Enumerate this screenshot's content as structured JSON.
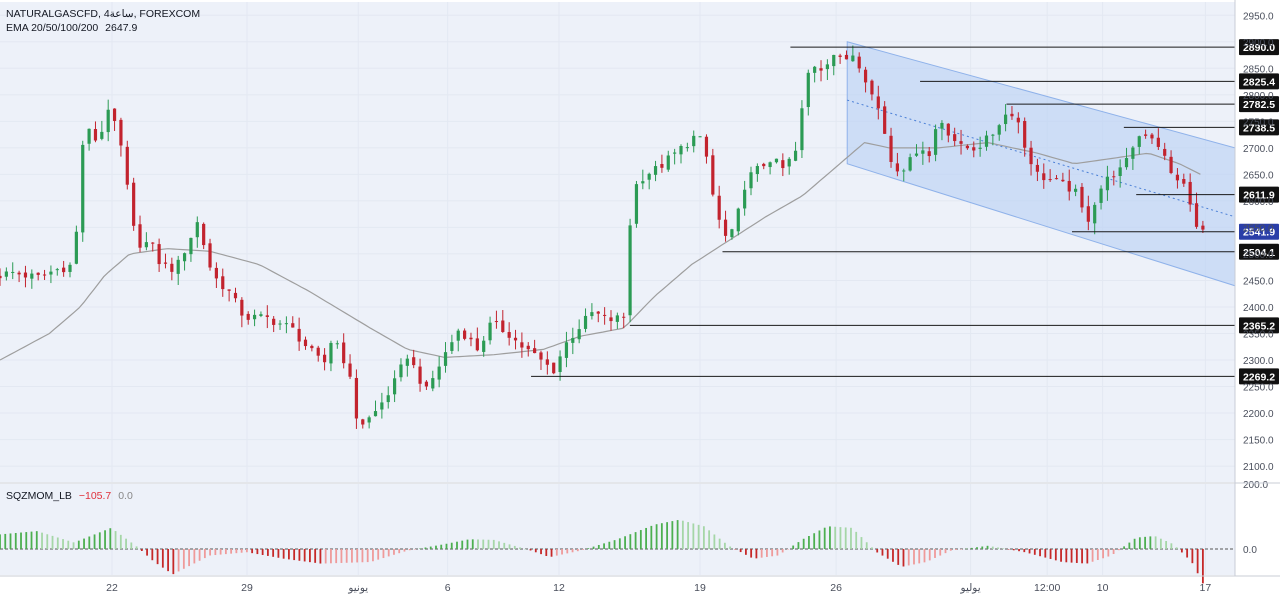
{
  "header": {
    "symbol": "NATURALGASCFD, 4ساعة, FOREXCOM",
    "ema_label": "EMA 20/50/100/200",
    "ema_value": "2647.9"
  },
  "indicator": {
    "name": "SQZMOM_LB",
    "value": "−105.7",
    "value2": "0.0"
  },
  "colors": {
    "up": "#26a69a",
    "up_candle": "#2b9b54",
    "down": "#c2232e",
    "ema": "#9e9e9e",
    "channel_fill": "#bcd3f5",
    "bg": "#edf1f9",
    "hist_up_strong": "#4caf50",
    "hist_up_weak": "#a5d6a7",
    "hist_down_strong": "#c62828",
    "hist_down_weak": "#ef9a9a"
  },
  "chart_data": {
    "type": "candlestick",
    "y_range": [
      2070,
      2975
    ],
    "y_ticks": [
      2100,
      2150,
      2200,
      2250,
      2300,
      2350,
      2400,
      2450,
      2500,
      2550,
      2600,
      2650,
      2700,
      2750,
      2800,
      2850,
      2900,
      2950
    ],
    "y_tick_labels": [
      "2100.0",
      "2150.0",
      "2200.0",
      "2250.0",
      "2300.0",
      "2350.0",
      "2400.0",
      "2450.0",
      "2500.0",
      "2550.0",
      "2600.0",
      "2650.0",
      "2700.0",
      "2750.0",
      "2800.0",
      "2850.0",
      "2900.0",
      "2950.0"
    ],
    "x_labels": [
      "22",
      "29",
      "يونيو",
      "6",
      "12",
      "19",
      "26",
      "يوليو",
      "12:00",
      "10",
      "17"
    ],
    "x_label_positions": [
      0.0907,
      0.2,
      0.2901,
      0.3625,
      0.4526,
      0.5668,
      0.677,
      0.7859,
      0.8479,
      0.8928,
      0.976
    ],
    "price_levels": [
      {
        "value": 2890.0,
        "label": "2890.0",
        "from": 0.64
      },
      {
        "value": 2825.4,
        "label": "2825.4",
        "from": 0.745
      },
      {
        "value": 2782.5,
        "label": "2782.5",
        "from": 0.815
      },
      {
        "value": 2738.5,
        "label": "2738.5",
        "from": 0.91
      },
      {
        "value": 2611.9,
        "label": "2611.9",
        "from": 0.92
      },
      {
        "value": 2541.9,
        "label": "2541.9",
        "from": 0.868,
        "current": true
      },
      {
        "value": 2504.1,
        "label": "2504.1",
        "from": 0.585
      },
      {
        "value": 2365.2,
        "label": "2365.2",
        "from": 0.51
      },
      {
        "value": 2269.2,
        "label": "2269.2",
        "from": 0.43
      }
    ],
    "channel": {
      "upper": {
        "from": [
          0.686,
          2900
        ],
        "to": [
          1.0,
          2700
        ]
      },
      "lower": {
        "from": [
          0.686,
          2670
        ],
        "to": [
          1.0,
          2440
        ]
      },
      "mid": {
        "from": [
          0.686,
          2790
        ],
        "to": [
          1.0,
          2570
        ]
      }
    },
    "price_keypoints": [
      [
        0.0,
        2460
      ],
      [
        0.01,
        2465
      ],
      [
        0.03,
        2455
      ],
      [
        0.045,
        2470
      ],
      [
        0.06,
        2480
      ],
      [
        0.068,
        2740
      ],
      [
        0.08,
        2710
      ],
      [
        0.088,
        2780
      ],
      [
        0.098,
        2700
      ],
      [
        0.11,
        2520
      ],
      [
        0.122,
        2520
      ],
      [
        0.13,
        2480
      ],
      [
        0.142,
        2470
      ],
      [
        0.16,
        2560
      ],
      [
        0.172,
        2460
      ],
      [
        0.185,
        2430
      ],
      [
        0.198,
        2380
      ],
      [
        0.215,
        2380
      ],
      [
        0.236,
        2360
      ],
      [
        0.25,
        2320
      ],
      [
        0.262,
        2290
      ],
      [
        0.27,
        2350
      ],
      [
        0.282,
        2280
      ],
      [
        0.29,
        2175
      ],
      [
        0.302,
        2195
      ],
      [
        0.318,
        2250
      ],
      [
        0.33,
        2310
      ],
      [
        0.345,
        2240
      ],
      [
        0.36,
        2310
      ],
      [
        0.372,
        2360
      ],
      [
        0.387,
        2320
      ],
      [
        0.398,
        2370
      ],
      [
        0.412,
        2350
      ],
      [
        0.42,
        2330
      ],
      [
        0.432,
        2310
      ],
      [
        0.44,
        2295
      ],
      [
        0.448,
        2280
      ],
      [
        0.458,
        2330
      ],
      [
        0.468,
        2360
      ],
      [
        0.48,
        2390
      ],
      [
        0.492,
        2375
      ],
      [
        0.505,
        2380
      ],
      [
        0.512,
        2620
      ],
      [
        0.522,
        2650
      ],
      [
        0.532,
        2660
      ],
      [
        0.542,
        2680
      ],
      [
        0.552,
        2700
      ],
      [
        0.562,
        2720
      ],
      [
        0.57,
        2710
      ],
      [
        0.578,
        2600
      ],
      [
        0.586,
        2530
      ],
      [
        0.594,
        2540
      ],
      [
        0.604,
        2640
      ],
      [
        0.614,
        2660
      ],
      [
        0.624,
        2680
      ],
      [
        0.634,
        2660
      ],
      [
        0.644,
        2690
      ],
      [
        0.65,
        2780
      ],
      [
        0.656,
        2860
      ],
      [
        0.666,
        2850
      ],
      [
        0.674,
        2880
      ],
      [
        0.682,
        2860
      ],
      [
        0.69,
        2880
      ],
      [
        0.698,
        2850
      ],
      [
        0.706,
        2800
      ],
      [
        0.714,
        2760
      ],
      [
        0.72,
        2680
      ],
      [
        0.728,
        2660
      ],
      [
        0.736,
        2670
      ],
      [
        0.745,
        2710
      ],
      [
        0.752,
        2680
      ],
      [
        0.76,
        2760
      ],
      [
        0.768,
        2730
      ],
      [
        0.778,
        2700
      ],
      [
        0.79,
        2700
      ],
      [
        0.802,
        2720
      ],
      [
        0.812,
        2760
      ],
      [
        0.822,
        2770
      ],
      [
        0.83,
        2700
      ],
      [
        0.84,
        2650
      ],
      [
        0.85,
        2640
      ],
      [
        0.86,
        2630
      ],
      [
        0.87,
        2620
      ],
      [
        0.88,
        2560
      ],
      [
        0.89,
        2620
      ],
      [
        0.9,
        2650
      ],
      [
        0.91,
        2660
      ],
      [
        0.92,
        2720
      ],
      [
        0.93,
        2730
      ],
      [
        0.94,
        2700
      ],
      [
        0.948,
        2650
      ],
      [
        0.956,
        2640
      ],
      [
        0.962,
        2610
      ],
      [
        0.968,
        2550
      ],
      [
        0.974,
        2541.9
      ]
    ],
    "ema_keypoints": [
      [
        0.0,
        2300
      ],
      [
        0.04,
        2350
      ],
      [
        0.065,
        2400
      ],
      [
        0.085,
        2460
      ],
      [
        0.105,
        2500
      ],
      [
        0.135,
        2510
      ],
      [
        0.17,
        2505
      ],
      [
        0.21,
        2480
      ],
      [
        0.25,
        2430
      ],
      [
        0.3,
        2360
      ],
      [
        0.33,
        2320
      ],
      [
        0.36,
        2305
      ],
      [
        0.4,
        2310
      ],
      [
        0.44,
        2320
      ],
      [
        0.47,
        2345
      ],
      [
        0.505,
        2360
      ],
      [
        0.53,
        2420
      ],
      [
        0.56,
        2480
      ],
      [
        0.59,
        2525
      ],
      [
        0.62,
        2570
      ],
      [
        0.65,
        2610
      ],
      [
        0.68,
        2670
      ],
      [
        0.7,
        2710
      ],
      [
        0.72,
        2700
      ],
      [
        0.76,
        2700
      ],
      [
        0.8,
        2710
      ],
      [
        0.84,
        2690
      ],
      [
        0.87,
        2670
      ],
      [
        0.9,
        2680
      ],
      [
        0.93,
        2690
      ],
      [
        0.955,
        2670
      ],
      [
        0.974,
        2647.9
      ]
    ],
    "momentum": {
      "y_range": [
        -80,
        200
      ],
      "y_ticks": [
        0,
        200
      ],
      "y_tick_labels": [
        "0.0",
        "200.0"
      ],
      "keypoints": [
        [
          0.0,
          45
        ],
        [
          0.03,
          55
        ],
        [
          0.06,
          20
        ],
        [
          0.09,
          65
        ],
        [
          0.11,
          10
        ],
        [
          0.125,
          -40
        ],
        [
          0.14,
          -78
        ],
        [
          0.17,
          -20
        ],
        [
          0.2,
          -10
        ],
        [
          0.23,
          -30
        ],
        [
          0.26,
          -45
        ],
        [
          0.3,
          -40
        ],
        [
          0.33,
          -5
        ],
        [
          0.36,
          15
        ],
        [
          0.38,
          30
        ],
        [
          0.4,
          28
        ],
        [
          0.43,
          -5
        ],
        [
          0.445,
          -25
        ],
        [
          0.47,
          -5
        ],
        [
          0.5,
          30
        ],
        [
          0.53,
          75
        ],
        [
          0.55,
          90
        ],
        [
          0.57,
          70
        ],
        [
          0.59,
          10
        ],
        [
          0.61,
          -30
        ],
        [
          0.63,
          -20
        ],
        [
          0.65,
          30
        ],
        [
          0.67,
          70
        ],
        [
          0.69,
          65
        ],
        [
          0.71,
          -10
        ],
        [
          0.73,
          -55
        ],
        [
          0.75,
          -40
        ],
        [
          0.77,
          -5
        ],
        [
          0.8,
          10
        ],
        [
          0.83,
          -10
        ],
        [
          0.86,
          -40
        ],
        [
          0.88,
          -45
        ],
        [
          0.9,
          -20
        ],
        [
          0.92,
          35
        ],
        [
          0.935,
          40
        ],
        [
          0.95,
          15
        ],
        [
          0.965,
          -40
        ],
        [
          0.974,
          -105.7
        ]
      ]
    }
  }
}
